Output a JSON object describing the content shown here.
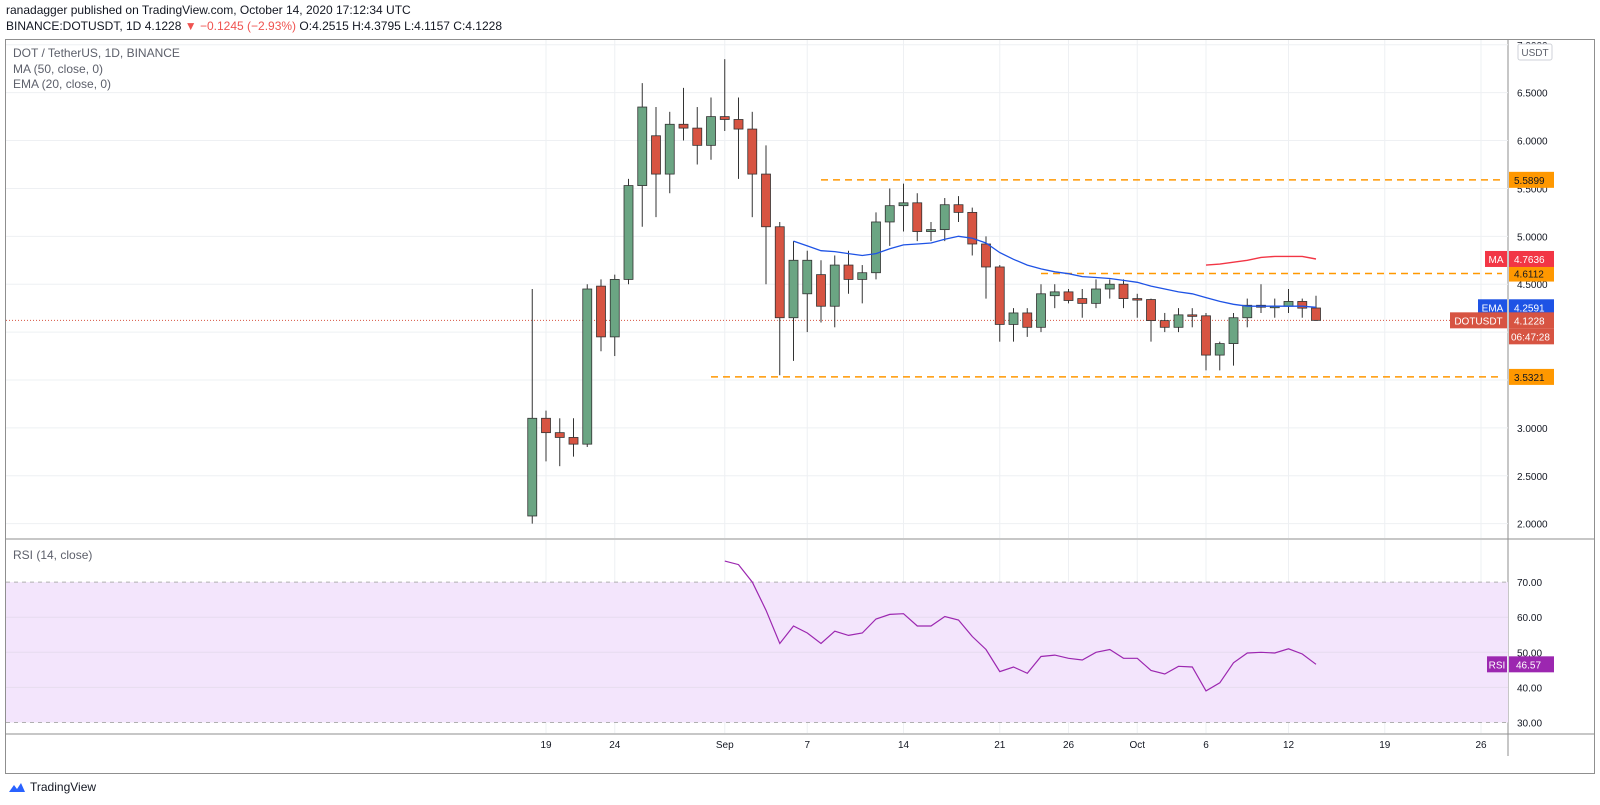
{
  "header": {
    "published_line": "ranadagger published on TradingView.com, October 14, 2020 17:12:34 UTC",
    "symbol": "BINANCE:DOTUSDT, 1D",
    "last": "4.1228",
    "change": "−0.1245 (−2.93%)",
    "ohlc": "O:4.2515 H:4.3795 L:4.1157 C:4.1228"
  },
  "legend": {
    "title": "DOT / TetherUS, 1D, BINANCE",
    "ma": "MA (50, close, 0)",
    "ema": "EMA (20, close, 0)",
    "rsi": "RSI (14, close)"
  },
  "footer": {
    "brand": "TradingView"
  },
  "colors": {
    "up": "#6ba583",
    "down": "#d75442",
    "ema": "#1e53e5",
    "ma": "#f23645",
    "rsi": "#9c27b0",
    "level": "#ff9800",
    "rsi_band": "#f3e5fc"
  },
  "chart_data": [
    {
      "type": "candlestick",
      "title": "DOT / TetherUS, 1D, BINANCE",
      "currency_badge": "USDT",
      "x_ticks": [
        "19",
        "24",
        "Sep",
        "7",
        "14",
        "21",
        "26",
        "Oct",
        "6",
        "12",
        "19",
        "26"
      ],
      "y_ticks": [
        "2.0000",
        "2.5000",
        "3.0000",
        "3.5000",
        "4.0000",
        "4.5000",
        "5.0000",
        "5.5000",
        "6.0000",
        "6.5000",
        "7.0000"
      ],
      "ylim": [
        1.85,
        7.05
      ],
      "candles": [
        {
          "date": "2020-08-18",
          "o": 2.08,
          "h": 4.45,
          "l": 2.0,
          "c": 3.1
        },
        {
          "date": "2020-08-19",
          "o": 3.1,
          "h": 3.18,
          "l": 2.65,
          "c": 2.95
        },
        {
          "date": "2020-08-20",
          "o": 2.95,
          "h": 3.1,
          "l": 2.6,
          "c": 2.9
        },
        {
          "date": "2020-08-21",
          "o": 2.9,
          "h": 3.1,
          "l": 2.7,
          "c": 2.83
        },
        {
          "date": "2020-08-22",
          "o": 2.83,
          "h": 4.5,
          "l": 2.8,
          "c": 4.45
        },
        {
          "date": "2020-08-23",
          "o": 4.48,
          "h": 4.55,
          "l": 3.8,
          "c": 3.95
        },
        {
          "date": "2020-08-24",
          "o": 3.95,
          "h": 4.6,
          "l": 3.75,
          "c": 4.55
        },
        {
          "date": "2020-08-25",
          "o": 4.55,
          "h": 5.6,
          "l": 4.5,
          "c": 5.53
        },
        {
          "date": "2020-08-26",
          "o": 5.53,
          "h": 6.6,
          "l": 5.1,
          "c": 6.35
        },
        {
          "date": "2020-08-27",
          "o": 6.05,
          "h": 6.35,
          "l": 5.2,
          "c": 5.65
        },
        {
          "date": "2020-08-28",
          "o": 5.65,
          "h": 6.3,
          "l": 5.45,
          "c": 6.17
        },
        {
          "date": "2020-08-29",
          "o": 6.17,
          "h": 6.55,
          "l": 6.0,
          "c": 6.13
        },
        {
          "date": "2020-08-30",
          "o": 6.13,
          "h": 6.35,
          "l": 5.75,
          "c": 5.95
        },
        {
          "date": "2020-08-31",
          "o": 5.95,
          "h": 6.45,
          "l": 5.8,
          "c": 6.25
        },
        {
          "date": "2020-09-01",
          "o": 6.25,
          "h": 6.85,
          "l": 6.1,
          "c": 6.22
        },
        {
          "date": "2020-09-02",
          "o": 6.22,
          "h": 6.45,
          "l": 5.6,
          "c": 6.12
        },
        {
          "date": "2020-09-03",
          "o": 6.12,
          "h": 6.3,
          "l": 5.2,
          "c": 5.65
        },
        {
          "date": "2020-09-04",
          "o": 5.65,
          "h": 5.95,
          "l": 4.5,
          "c": 5.1
        },
        {
          "date": "2020-09-05",
          "o": 5.1,
          "h": 5.15,
          "l": 3.55,
          "c": 4.15
        },
        {
          "date": "2020-09-06",
          "o": 4.15,
          "h": 4.95,
          "l": 3.7,
          "c": 4.75
        },
        {
          "date": "2020-09-07",
          "o": 4.4,
          "h": 4.85,
          "l": 4.0,
          "c": 4.75
        },
        {
          "date": "2020-09-08",
          "o": 4.6,
          "h": 4.75,
          "l": 4.1,
          "c": 4.27
        },
        {
          "date": "2020-09-09",
          "o": 4.27,
          "h": 4.8,
          "l": 4.05,
          "c": 4.7
        },
        {
          "date": "2020-09-10",
          "o": 4.7,
          "h": 4.85,
          "l": 4.4,
          "c": 4.55
        },
        {
          "date": "2020-09-11",
          "o": 4.55,
          "h": 4.7,
          "l": 4.3,
          "c": 4.62
        },
        {
          "date": "2020-09-12",
          "o": 4.62,
          "h": 5.25,
          "l": 4.55,
          "c": 5.15
        },
        {
          "date": "2020-09-13",
          "o": 5.15,
          "h": 5.5,
          "l": 4.9,
          "c": 5.32
        },
        {
          "date": "2020-09-14",
          "o": 5.32,
          "h": 5.55,
          "l": 5.05,
          "c": 5.35
        },
        {
          "date": "2020-09-15",
          "o": 5.35,
          "h": 5.45,
          "l": 4.95,
          "c": 5.05
        },
        {
          "date": "2020-09-16",
          "o": 5.05,
          "h": 5.15,
          "l": 4.95,
          "c": 5.07
        },
        {
          "date": "2020-09-17",
          "o": 5.07,
          "h": 5.4,
          "l": 4.95,
          "c": 5.33
        },
        {
          "date": "2020-09-18",
          "o": 5.33,
          "h": 5.42,
          "l": 5.15,
          "c": 5.25
        },
        {
          "date": "2020-09-19",
          "o": 5.25,
          "h": 5.3,
          "l": 4.8,
          "c": 4.92
        },
        {
          "date": "2020-09-20",
          "o": 4.92,
          "h": 5.0,
          "l": 4.35,
          "c": 4.68
        },
        {
          "date": "2020-09-21",
          "o": 4.68,
          "h": 4.7,
          "l": 3.9,
          "c": 4.08
        },
        {
          "date": "2020-09-22",
          "o": 4.08,
          "h": 4.25,
          "l": 3.9,
          "c": 4.2
        },
        {
          "date": "2020-09-23",
          "o": 4.2,
          "h": 4.25,
          "l": 3.95,
          "c": 4.05
        },
        {
          "date": "2020-09-24",
          "o": 4.05,
          "h": 4.5,
          "l": 4.0,
          "c": 4.4
        },
        {
          "date": "2020-09-25",
          "o": 4.38,
          "h": 4.5,
          "l": 4.25,
          "c": 4.42
        },
        {
          "date": "2020-09-26",
          "o": 4.42,
          "h": 4.45,
          "l": 4.3,
          "c": 4.33
        },
        {
          "date": "2020-09-27",
          "o": 4.35,
          "h": 4.45,
          "l": 4.15,
          "c": 4.3
        },
        {
          "date": "2020-09-28",
          "o": 4.3,
          "h": 4.55,
          "l": 4.25,
          "c": 4.45
        },
        {
          "date": "2020-09-29",
          "o": 4.45,
          "h": 4.55,
          "l": 4.35,
          "c": 4.5
        },
        {
          "date": "2020-09-30",
          "o": 4.5,
          "h": 4.55,
          "l": 4.25,
          "c": 4.35
        },
        {
          "date": "2020-10-01",
          "o": 4.35,
          "h": 4.4,
          "l": 4.15,
          "c": 4.34
        },
        {
          "date": "2020-10-02",
          "o": 4.34,
          "h": 4.35,
          "l": 3.9,
          "c": 4.12
        },
        {
          "date": "2020-10-03",
          "o": 4.12,
          "h": 4.2,
          "l": 4.0,
          "c": 4.05
        },
        {
          "date": "2020-10-04",
          "o": 4.05,
          "h": 4.25,
          "l": 4.0,
          "c": 4.18
        },
        {
          "date": "2020-10-05",
          "o": 4.18,
          "h": 4.25,
          "l": 4.05,
          "c": 4.17
        },
        {
          "date": "2020-10-06",
          "o": 4.17,
          "h": 4.2,
          "l": 3.6,
          "c": 3.76
        },
        {
          "date": "2020-10-07",
          "o": 3.76,
          "h": 3.9,
          "l": 3.6,
          "c": 3.88
        },
        {
          "date": "2020-10-08",
          "o": 3.88,
          "h": 4.2,
          "l": 3.65,
          "c": 4.15
        },
        {
          "date": "2020-10-09",
          "o": 4.15,
          "h": 4.35,
          "l": 4.05,
          "c": 4.28
        },
        {
          "date": "2020-10-10",
          "o": 4.28,
          "h": 4.5,
          "l": 4.2,
          "c": 4.26
        },
        {
          "date": "2020-10-11",
          "o": 4.26,
          "h": 4.35,
          "l": 4.15,
          "c": 4.27
        },
        {
          "date": "2020-10-12",
          "o": 4.27,
          "h": 4.45,
          "l": 4.2,
          "c": 4.32
        },
        {
          "date": "2020-10-13",
          "o": 4.32,
          "h": 4.35,
          "l": 4.15,
          "c": 4.25
        },
        {
          "date": "2020-10-14",
          "o": 4.2515,
          "h": 4.3795,
          "l": 4.1157,
          "c": 4.1228
        }
      ],
      "series": [
        {
          "name": "EMA (20, close, 0)",
          "values": [
            {
              "date": "2020-09-06",
              "v": 4.95
            },
            {
              "date": "2020-09-07",
              "v": 4.9
            },
            {
              "date": "2020-09-08",
              "v": 4.85
            },
            {
              "date": "2020-09-09",
              "v": 4.84
            },
            {
              "date": "2020-09-10",
              "v": 4.82
            },
            {
              "date": "2020-09-11",
              "v": 4.8
            },
            {
              "date": "2020-09-12",
              "v": 4.82
            },
            {
              "date": "2020-09-13",
              "v": 4.87
            },
            {
              "date": "2020-09-14",
              "v": 4.91
            },
            {
              "date": "2020-09-15",
              "v": 4.92
            },
            {
              "date": "2020-09-16",
              "v": 4.93
            },
            {
              "date": "2020-09-17",
              "v": 4.97
            },
            {
              "date": "2020-09-18",
              "v": 5.0
            },
            {
              "date": "2020-09-19",
              "v": 4.98
            },
            {
              "date": "2020-09-20",
              "v": 4.93
            },
            {
              "date": "2020-09-21",
              "v": 4.83
            },
            {
              "date": "2020-09-22",
              "v": 4.76
            },
            {
              "date": "2020-09-23",
              "v": 4.7
            },
            {
              "date": "2020-09-24",
              "v": 4.66
            },
            {
              "date": "2020-09-25",
              "v": 4.63
            },
            {
              "date": "2020-09-26",
              "v": 4.61
            },
            {
              "date": "2020-09-27",
              "v": 4.58
            },
            {
              "date": "2020-09-28",
              "v": 4.57
            },
            {
              "date": "2020-09-29",
              "v": 4.56
            },
            {
              "date": "2020-09-30",
              "v": 4.54
            },
            {
              "date": "2020-10-01",
              "v": 4.52
            },
            {
              "date": "2020-10-02",
              "v": 4.48
            },
            {
              "date": "2020-10-03",
              "v": 4.45
            },
            {
              "date": "2020-10-04",
              "v": 4.42
            },
            {
              "date": "2020-10-05",
              "v": 4.4
            },
            {
              "date": "2020-10-06",
              "v": 4.36
            },
            {
              "date": "2020-10-07",
              "v": 4.32
            },
            {
              "date": "2020-10-08",
              "v": 4.29
            },
            {
              "date": "2020-10-09",
              "v": 4.27
            },
            {
              "date": "2020-10-10",
              "v": 4.27
            },
            {
              "date": "2020-10-11",
              "v": 4.27
            },
            {
              "date": "2020-10-12",
              "v": 4.27
            },
            {
              "date": "2020-10-13",
              "v": 4.27
            },
            {
              "date": "2020-10-14",
              "v": 4.2591
            }
          ]
        },
        {
          "name": "MA (50, close, 0)",
          "values": [
            {
              "date": "2020-10-06",
              "v": 4.7
            },
            {
              "date": "2020-10-07",
              "v": 4.71
            },
            {
              "date": "2020-10-08",
              "v": 4.73
            },
            {
              "date": "2020-10-09",
              "v": 4.75
            },
            {
              "date": "2020-10-10",
              "v": 4.78
            },
            {
              "date": "2020-10-11",
              "v": 4.79
            },
            {
              "date": "2020-10-12",
              "v": 4.79
            },
            {
              "date": "2020-10-13",
              "v": 4.79
            },
            {
              "date": "2020-10-14",
              "v": 4.7636
            }
          ]
        }
      ],
      "levels": [
        {
          "value": 5.5899,
          "label": "5.5899",
          "start_date": "2020-09-08"
        },
        {
          "value": 4.6112,
          "label": "4.6112",
          "start_date": "2020-09-24"
        },
        {
          "value": 3.5321,
          "label": "3.5321",
          "start_date": "2020-08-31"
        }
      ],
      "price_tags": [
        {
          "text": "4.7636",
          "name": "MA",
          "value": 4.7636,
          "color": "#f23645"
        },
        {
          "text": "4.2591",
          "name": "EMA",
          "value": 4.2591,
          "color": "#1e53e5"
        },
        {
          "text": "4.1228",
          "name": "DOTUSDT",
          "value": 4.1228,
          "color": "#d75442"
        }
      ],
      "countdown": "06:47:28"
    },
    {
      "type": "line",
      "title": "RSI (14, close)",
      "y_ticks": [
        "30.00",
        "40.00",
        "50.00",
        "60.00",
        "70.00"
      ],
      "ylim": [
        27,
        82
      ],
      "band": [
        30,
        70
      ],
      "series": [
        {
          "name": "RSI",
          "values": [
            {
              "date": "2020-09-01",
              "v": 76.0
            },
            {
              "date": "2020-09-02",
              "v": 75.0
            },
            {
              "date": "2020-09-03",
              "v": 70.0
            },
            {
              "date": "2020-09-04",
              "v": 62.0
            },
            {
              "date": "2020-09-05",
              "v": 52.5
            },
            {
              "date": "2020-09-06",
              "v": 57.5
            },
            {
              "date": "2020-09-07",
              "v": 55.5
            },
            {
              "date": "2020-09-08",
              "v": 52.5
            },
            {
              "date": "2020-09-09",
              "v": 56.0
            },
            {
              "date": "2020-09-10",
              "v": 54.8
            },
            {
              "date": "2020-09-11",
              "v": 55.5
            },
            {
              "date": "2020-09-12",
              "v": 59.5
            },
            {
              "date": "2020-09-13",
              "v": 60.8
            },
            {
              "date": "2020-09-14",
              "v": 61.0
            },
            {
              "date": "2020-09-15",
              "v": 57.5
            },
            {
              "date": "2020-09-16",
              "v": 57.5
            },
            {
              "date": "2020-09-17",
              "v": 60.2
            },
            {
              "date": "2020-09-18",
              "v": 59.2
            },
            {
              "date": "2020-09-19",
              "v": 54.5
            },
            {
              "date": "2020-09-20",
              "v": 50.8
            },
            {
              "date": "2020-09-21",
              "v": 44.5
            },
            {
              "date": "2020-09-22",
              "v": 45.8
            },
            {
              "date": "2020-09-23",
              "v": 44.0
            },
            {
              "date": "2020-09-24",
              "v": 48.8
            },
            {
              "date": "2020-09-25",
              "v": 49.2
            },
            {
              "date": "2020-09-26",
              "v": 48.3
            },
            {
              "date": "2020-09-27",
              "v": 47.8
            },
            {
              "date": "2020-09-28",
              "v": 50.0
            },
            {
              "date": "2020-09-29",
              "v": 50.8
            },
            {
              "date": "2020-09-30",
              "v": 48.3
            },
            {
              "date": "2020-10-01",
              "v": 48.3
            },
            {
              "date": "2020-10-02",
              "v": 44.8
            },
            {
              "date": "2020-10-03",
              "v": 43.8
            },
            {
              "date": "2020-10-04",
              "v": 46.0
            },
            {
              "date": "2020-10-05",
              "v": 45.8
            },
            {
              "date": "2020-10-06",
              "v": 39.0
            },
            {
              "date": "2020-10-07",
              "v": 41.3
            },
            {
              "date": "2020-10-08",
              "v": 47.0
            },
            {
              "date": "2020-10-09",
              "v": 49.8
            },
            {
              "date": "2020-10-10",
              "v": 50.0
            },
            {
              "date": "2020-10-11",
              "v": 49.8
            },
            {
              "date": "2020-10-12",
              "v": 51.0
            },
            {
              "date": "2020-10-13",
              "v": 49.5
            },
            {
              "date": "2020-10-14",
              "v": 46.57
            }
          ]
        }
      ],
      "price_tags": [
        {
          "text": "46.57",
          "name": "RSI",
          "value": 46.57,
          "color": "#9c27b0"
        }
      ]
    }
  ]
}
